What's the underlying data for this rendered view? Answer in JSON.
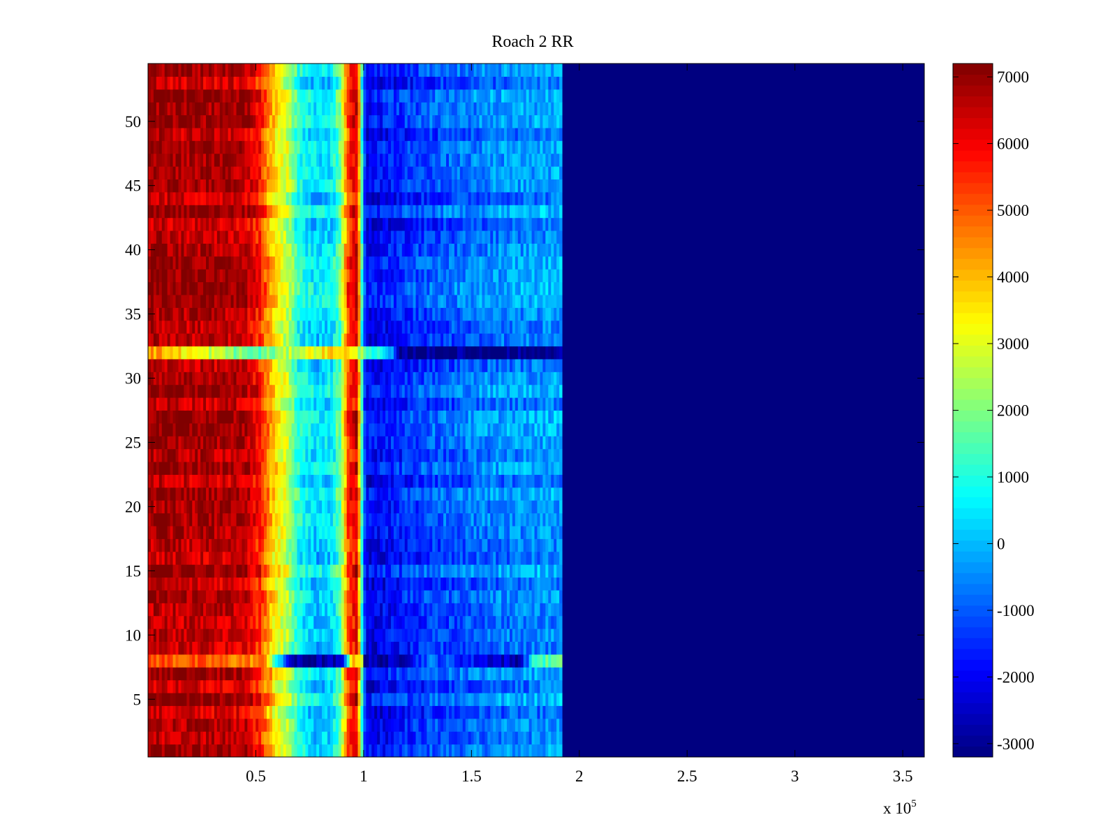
{
  "chart_data": {
    "type": "heatmap",
    "title": "Roach 2 RR",
    "xlabel": "",
    "ylabel": "",
    "x_exponent_label": "x 10",
    "x_exponent_power": "5",
    "xlim": [
      0,
      3.6
    ],
    "ylim": [
      0.5,
      54.5
    ],
    "x_ticks": [
      {
        "value": 0.5,
        "label": "0.5"
      },
      {
        "value": 1.0,
        "label": "1"
      },
      {
        "value": 1.5,
        "label": "1.5"
      },
      {
        "value": 2.0,
        "label": "2"
      },
      {
        "value": 2.5,
        "label": "2.5"
      },
      {
        "value": 3.0,
        "label": "3"
      },
      {
        "value": 3.5,
        "label": "3.5"
      }
    ],
    "y_ticks": [
      {
        "value": 5,
        "label": "5"
      },
      {
        "value": 10,
        "label": "10"
      },
      {
        "value": 15,
        "label": "15"
      },
      {
        "value": 20,
        "label": "20"
      },
      {
        "value": 25,
        "label": "25"
      },
      {
        "value": 30,
        "label": "30"
      },
      {
        "value": 35,
        "label": "35"
      },
      {
        "value": 40,
        "label": "40"
      },
      {
        "value": 45,
        "label": "45"
      },
      {
        "value": 50,
        "label": "50"
      }
    ],
    "colorbar": {
      "range": [
        -3200,
        7200
      ],
      "colormap": "jet",
      "ticks": [
        {
          "value": 7000,
          "label": "7000"
        },
        {
          "value": 6000,
          "label": "6000"
        },
        {
          "value": 5000,
          "label": "5000"
        },
        {
          "value": 4000,
          "label": "4000"
        },
        {
          "value": 3000,
          "label": "3000"
        },
        {
          "value": 2000,
          "label": "2000"
        },
        {
          "value": 1000,
          "label": "1000"
        },
        {
          "value": 0,
          "label": "0"
        },
        {
          "value": -1000,
          "label": "-1000"
        },
        {
          "value": -2000,
          "label": "-2000"
        },
        {
          "value": -3000,
          "label": "-3000"
        }
      ]
    },
    "rows": 54,
    "data_extent_x": 1.92,
    "fill_value": -3200,
    "value_profile": [
      {
        "x": 0.0,
        "v": 6800
      },
      {
        "x": 0.44,
        "v": 6600
      },
      {
        "x": 0.52,
        "v": 5600
      },
      {
        "x": 0.58,
        "v": 3700
      },
      {
        "x": 0.65,
        "v": 2600
      },
      {
        "x": 0.7,
        "v": 900
      },
      {
        "x": 0.78,
        "v": 200
      },
      {
        "x": 0.85,
        "v": 500
      },
      {
        "x": 0.89,
        "v": 1600
      },
      {
        "x": 0.93,
        "v": 5400
      },
      {
        "x": 0.97,
        "v": 6300
      },
      {
        "x": 0.99,
        "v": 1500
      },
      {
        "x": 1.01,
        "v": -2100
      },
      {
        "x": 1.3,
        "v": -1200
      },
      {
        "x": 1.6,
        "v": -600
      },
      {
        "x": 1.92,
        "v": -300
      }
    ],
    "special_rows": [
      {
        "row": 32,
        "values": [
          {
            "x": 0.0,
            "v": 4500
          },
          {
            "x": 0.25,
            "v": 3000
          },
          {
            "x": 0.5,
            "v": 1500
          },
          {
            "x": 0.9,
            "v": 4000
          },
          {
            "x": 1.13,
            "v": -500
          },
          {
            "x": 1.16,
            "v": -3100
          },
          {
            "x": 1.92,
            "v": -3100
          }
        ]
      },
      {
        "row": 8,
        "values": [
          {
            "x": 0.0,
            "v": 5200
          },
          {
            "x": 0.55,
            "v": 4500
          },
          {
            "x": 0.6,
            "v": 400
          },
          {
            "x": 0.68,
            "v": -3000
          },
          {
            "x": 0.9,
            "v": -2800
          },
          {
            "x": 0.94,
            "v": 3500
          },
          {
            "x": 0.99,
            "v": 4200
          },
          {
            "x": 1.0,
            "v": -2800
          },
          {
            "x": 1.15,
            "v": -2800
          },
          {
            "x": 1.3,
            "v": -800
          },
          {
            "x": 1.72,
            "v": -2800
          },
          {
            "x": 1.8,
            "v": 1500
          },
          {
            "x": 1.92,
            "v": 1500
          }
        ]
      }
    ]
  }
}
